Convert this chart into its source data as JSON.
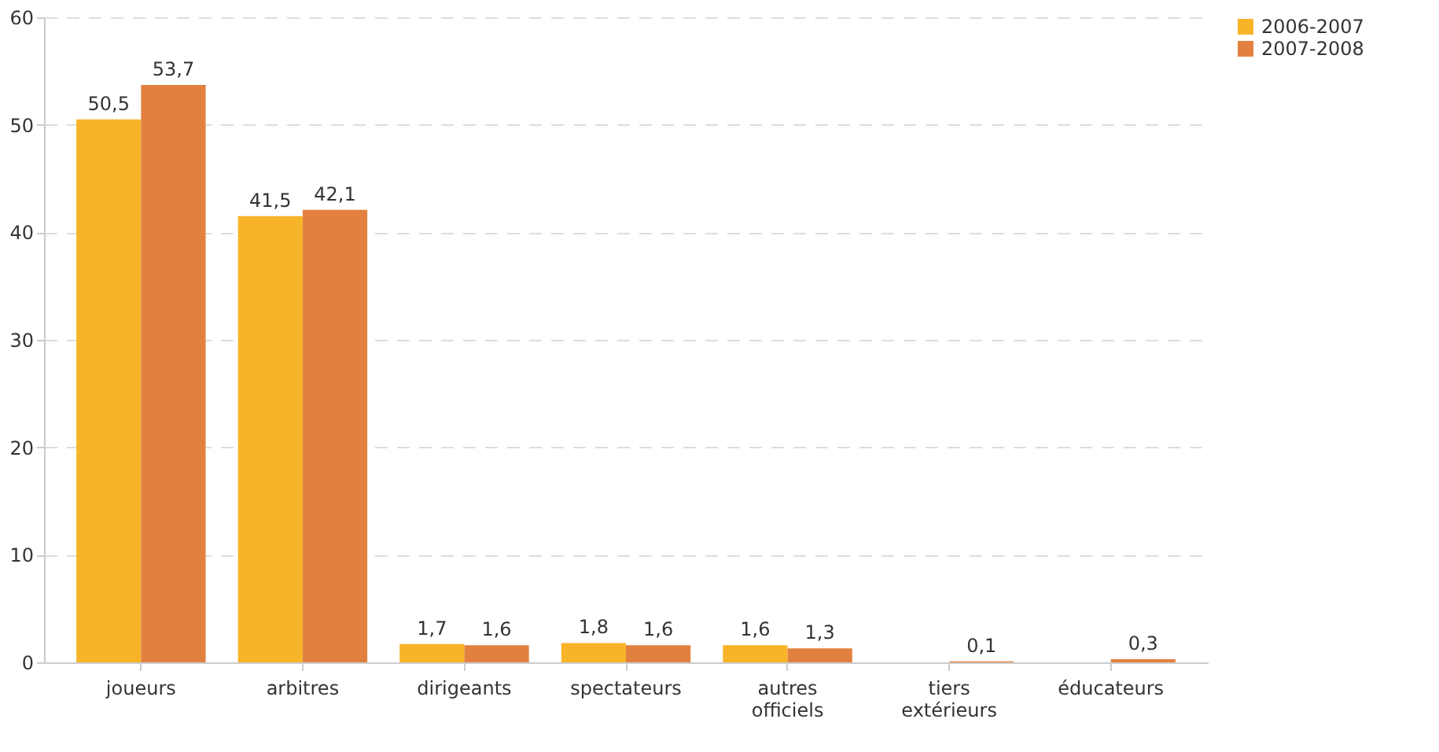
{
  "chart_data": {
    "type": "bar",
    "categories": [
      "joueurs",
      "arbitres",
      "dirigeants",
      "spectateurs",
      "autres officiels",
      "tiers extérieurs",
      "éducateurs"
    ],
    "series": [
      {
        "name": "2006-2007",
        "color": "#f8b428",
        "values": [
          50.5,
          41.5,
          1.7,
          1.8,
          1.6,
          null,
          null
        ],
        "value_labels": [
          "50,5",
          "41,5",
          "1,7",
          "1,8",
          "1,6",
          null,
          null
        ]
      },
      {
        "name": "2007-2008",
        "color": "#e2813f",
        "values": [
          53.7,
          42.1,
          1.6,
          1.6,
          1.3,
          0.1,
          0.3
        ],
        "value_labels": [
          "53,7",
          "42,1",
          "1,6",
          "1,6",
          "1,3",
          "0,1",
          "0,3"
        ]
      }
    ],
    "ylim": [
      0,
      60
    ],
    "yticks": [
      0,
      10,
      20,
      30,
      40,
      50,
      60
    ],
    "grid": "y",
    "legend": "right"
  }
}
